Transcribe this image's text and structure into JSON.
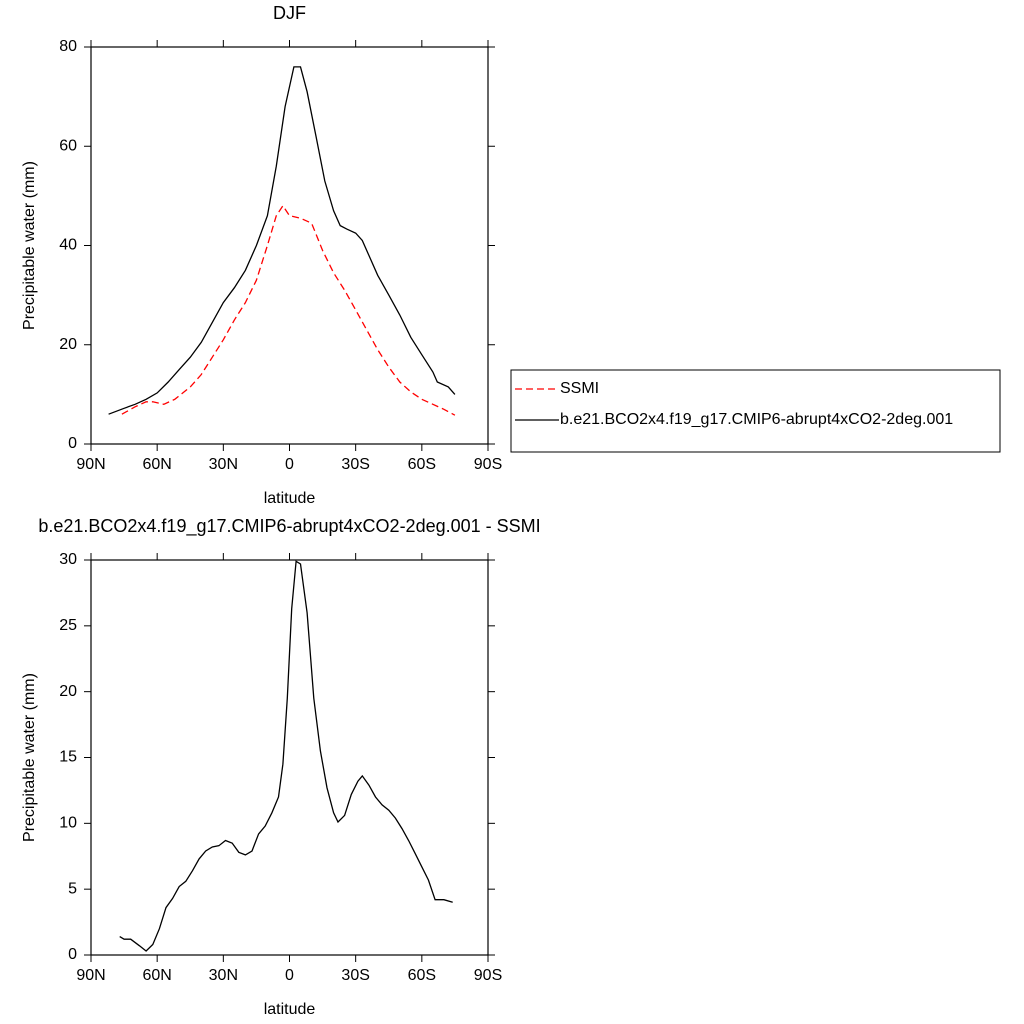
{
  "chart_data": [
    {
      "type": "line",
      "title": "DJF",
      "xlabel": "latitude",
      "ylabel": "Precipitable water (mm)",
      "xlim": [
        90,
        -90
      ],
      "xticks": [
        {
          "value": 90,
          "label": "90N"
        },
        {
          "value": 60,
          "label": "60N"
        },
        {
          "value": 30,
          "label": "30N"
        },
        0,
        {
          "value": -30,
          "label": "30S"
        },
        {
          "value": -60,
          "label": "60S"
        },
        {
          "value": -90,
          "label": "90S"
        }
      ],
      "ylim": [
        0,
        80
      ],
      "yticks": [
        0,
        20,
        40,
        60,
        80
      ],
      "legend": "right",
      "series": [
        {
          "name": "SSMI",
          "color": "#ff0000",
          "style": "dashed",
          "x": [
            76,
            70,
            65,
            62,
            57,
            52,
            45,
            40,
            35,
            30,
            25,
            20,
            15,
            10,
            6,
            3,
            0,
            -5,
            -10,
            -15,
            -20,
            -25,
            -30,
            -35,
            -40,
            -45,
            -50,
            -55,
            -60,
            -65,
            -70,
            -75
          ],
          "values": [
            6,
            7.5,
            8.5,
            8.5,
            8,
            9,
            11.5,
            14,
            17.5,
            21,
            25,
            28.5,
            33,
            40,
            46,
            48,
            46,
            45.5,
            44.5,
            39,
            34.5,
            31,
            27,
            23,
            19,
            15.5,
            12.5,
            10.5,
            9,
            8,
            7,
            5.8
          ]
        },
        {
          "name": "b.e21.BCO2x4.f19_g17.CMIP6-abrupt4xCO2-2deg.001",
          "color": "#000000",
          "style": "solid",
          "x": [
            82,
            75,
            70,
            65,
            60,
            55,
            50,
            45,
            40,
            35,
            30,
            25,
            20,
            15,
            10,
            6,
            2,
            -2,
            -5,
            -8,
            -12,
            -16,
            -20,
            -23,
            -26,
            -30,
            -33,
            -36,
            -40,
            -45,
            -50,
            -55,
            -60,
            -65,
            -67,
            -72,
            -75
          ],
          "values": [
            6,
            7.2,
            8,
            9,
            10.3,
            12.5,
            15,
            17.5,
            20.5,
            24.5,
            28.5,
            31.5,
            35,
            40,
            46,
            56,
            68,
            76,
            76,
            71,
            62,
            53,
            47,
            44,
            43.3,
            42.5,
            41,
            38,
            34,
            30,
            26,
            21.5,
            18,
            14.5,
            12.5,
            11.5,
            10
          ]
        }
      ]
    },
    {
      "type": "line",
      "title": "b.e21.BCO2x4.f19_g17.CMIP6-abrupt4xCO2-2deg.001 - SSMI",
      "xlabel": "latitude",
      "ylabel": "Precipitable water (mm)",
      "xlim": [
        90,
        -90
      ],
      "xticks": [
        {
          "value": 90,
          "label": "90N"
        },
        {
          "value": 60,
          "label": "60N"
        },
        {
          "value": 30,
          "label": "30N"
        },
        0,
        {
          "value": -30,
          "label": "30S"
        },
        {
          "value": -60,
          "label": "60S"
        },
        {
          "value": -90,
          "label": "90S"
        }
      ],
      "ylim": [
        0,
        30
      ],
      "yticks": [
        0,
        5,
        10,
        15,
        20,
        25,
        30
      ],
      "series": [
        {
          "color": "#000000",
          "style": "solid",
          "x": [
            77,
            75,
            72,
            68,
            65,
            62,
            59,
            56,
            53,
            50,
            47,
            44,
            41,
            38,
            35,
            32,
            29,
            26,
            23,
            20,
            17,
            14,
            11,
            8,
            5,
            3,
            1,
            -1,
            -3,
            -5,
            -8,
            -11,
            -14,
            -17,
            -20,
            -22,
            -25,
            -28,
            -31,
            -33,
            -36,
            -39,
            -42,
            -45,
            -48,
            -51,
            -54,
            -57,
            -60,
            -63,
            -66,
            -70,
            -74
          ],
          "values": [
            1.4,
            1.2,
            1.2,
            0.7,
            0.3,
            0.8,
            2,
            3.6,
            4.3,
            5.2,
            5.6,
            6.4,
            7.3,
            7.9,
            8.2,
            8.3,
            8.7,
            8.5,
            7.8,
            7.6,
            7.9,
            9.2,
            9.8,
            10.8,
            12,
            14.5,
            19.5,
            26.3,
            29.9,
            29.7,
            26,
            19.5,
            15.5,
            12.7,
            10.8,
            10.1,
            10.6,
            12.2,
            13.2,
            13.6,
            12.9,
            12,
            11.4,
            11,
            10.4,
            9.6,
            8.7,
            7.7,
            6.7,
            5.7,
            4.2,
            4.2,
            4.0
          ]
        }
      ]
    }
  ]
}
